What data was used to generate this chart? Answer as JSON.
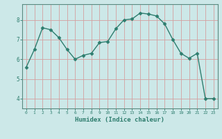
{
  "x": [
    0,
    1,
    2,
    3,
    4,
    5,
    6,
    7,
    8,
    9,
    10,
    11,
    12,
    13,
    14,
    15,
    16,
    17,
    18,
    19,
    20,
    21,
    22,
    23
  ],
  "y": [
    5.6,
    6.5,
    7.6,
    7.5,
    7.1,
    6.5,
    6.0,
    6.2,
    6.3,
    6.85,
    6.9,
    7.55,
    8.0,
    8.05,
    8.35,
    8.3,
    8.2,
    7.8,
    7.0,
    6.3,
    6.05,
    6.3,
    4.0,
    4.0
  ],
  "line_color": "#2e7d6e",
  "marker": "D",
  "marker_size": 2.5,
  "bg_color": "#cce8e8",
  "plot_bg_color": "#cce8e8",
  "grid_color": "#d4a0a0",
  "xlabel": "Humidex (Indice chaleur)",
  "ylabel": "",
  "ylim": [
    3.5,
    8.8
  ],
  "xlim": [
    -0.5,
    23.5
  ],
  "yticks": [
    4,
    5,
    6,
    7,
    8
  ],
  "xticks": [
    0,
    1,
    2,
    3,
    4,
    5,
    6,
    7,
    8,
    9,
    10,
    11,
    12,
    13,
    14,
    15,
    16,
    17,
    18,
    19,
    20,
    21,
    22,
    23
  ],
  "tick_color": "#2e7d6e",
  "label_color": "#2e7d6e",
  "spine_color": "#5a8a80"
}
